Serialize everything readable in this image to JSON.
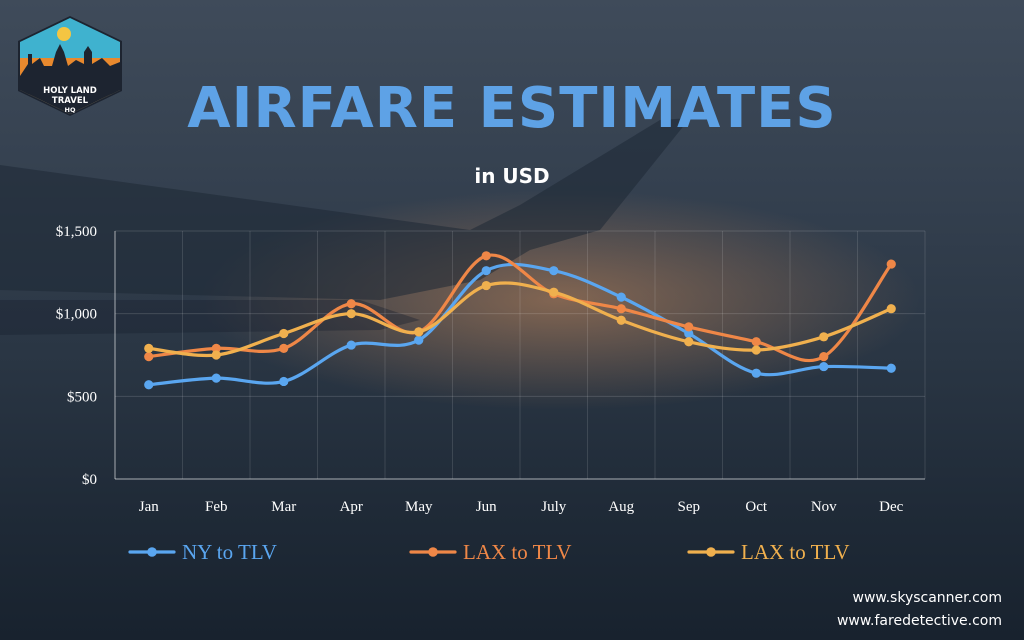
{
  "logo": {
    "line1": "HOLY LAND",
    "line2": "TRAVEL",
    "line3": "HQ"
  },
  "header": {
    "title": "AIRFARE ESTIMATES",
    "subtitle": "in USD"
  },
  "chart_data": {
    "type": "line",
    "categories": [
      "Jan",
      "Feb",
      "Mar",
      "Apr",
      "May",
      "Jun",
      "July",
      "Aug",
      "Sep",
      "Oct",
      "Nov",
      "Dec"
    ],
    "ylim": [
      0,
      1500
    ],
    "yticks": [
      0,
      500,
      1000,
      1500
    ],
    "ytick_labels": [
      "$0",
      "$500",
      "$1,000",
      "$1,500"
    ],
    "grid": true,
    "legend_position": "bottom",
    "series": [
      {
        "name": "NY to TLV",
        "color": "#5aa6f0",
        "values": [
          570,
          610,
          590,
          810,
          840,
          1260,
          1260,
          1100,
          880,
          640,
          680,
          670
        ]
      },
      {
        "name": "LAX to TLV",
        "color": "#ef8747",
        "values": [
          740,
          790,
          790,
          1060,
          890,
          1350,
          1120,
          1030,
          920,
          830,
          740,
          1300
        ]
      },
      {
        "name": "LAX to TLV",
        "color": "#f0b04e",
        "values": [
          790,
          750,
          880,
          1000,
          890,
          1170,
          1130,
          960,
          830,
          780,
          860,
          1030
        ]
      }
    ]
  },
  "sources": [
    "www.skyscanner.com",
    "www.faredetective.com"
  ]
}
